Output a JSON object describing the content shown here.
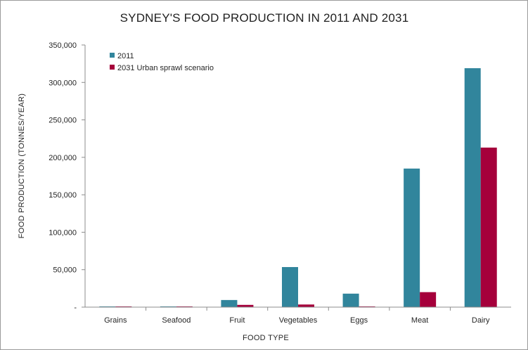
{
  "chart_data": {
    "type": "bar",
    "title": "SYDNEY'S FOOD PRODUCTION IN 2011 AND 2031",
    "xlabel": "FOOD TYPE",
    "ylabel": "FOOD PRODUCTION (TONNES/YEAR)",
    "categories": [
      "Grains",
      "Seafood",
      "Fruit",
      "Vegetables",
      "Eggs",
      "Meat",
      "Dairy"
    ],
    "series": [
      {
        "name": "2011",
        "color": "#31859c",
        "values": [
          500,
          500,
          9500,
          53500,
          18000,
          185000,
          319000
        ]
      },
      {
        "name": "2031 Urban sprawl scenario",
        "color": "#a5003b",
        "values": [
          500,
          500,
          3000,
          3500,
          500,
          20000,
          213000
        ]
      }
    ],
    "ylim": [
      0,
      350000
    ],
    "ytick_labels": [
      "-",
      "50,000",
      "100,000",
      "150,000",
      "200,000",
      "250,000",
      "300,000",
      "350,000"
    ],
    "grid": false,
    "legend": "top-left"
  }
}
